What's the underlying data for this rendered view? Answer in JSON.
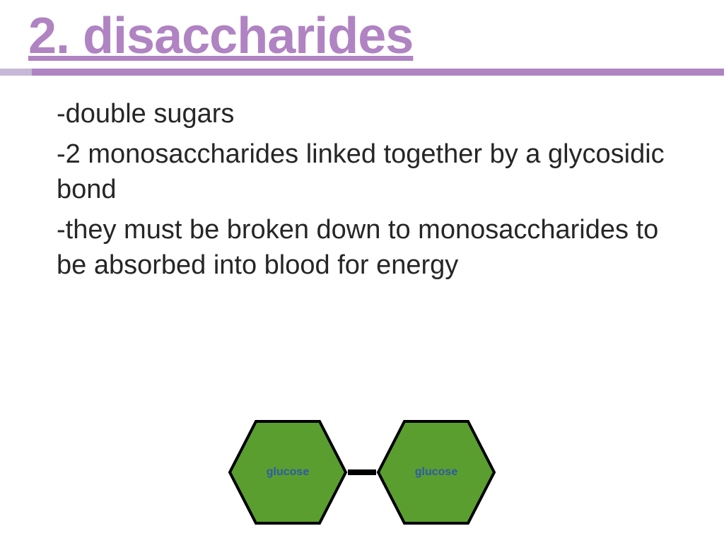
{
  "title": {
    "text": "2. disaccharides",
    "color": "#b083c2"
  },
  "accent_bar": {
    "left_color": "#c6b8d6",
    "left_width": 45,
    "right_color": "#b083c2"
  },
  "body": {
    "text_color": "#262626",
    "items": [
      "-double sugars",
      "-2 monosaccharides linked together by a glycosidic bond",
      "-they must be broken down to monosaccharides to be absorbed into blood for energy"
    ]
  },
  "diagram": {
    "hexagon": {
      "fill": "#5a9e2f",
      "stroke": "#000000",
      "stroke_width": 4
    },
    "label": {
      "text": "glucose",
      "color": "#2e5aa8"
    },
    "bond_color": "#000000"
  }
}
